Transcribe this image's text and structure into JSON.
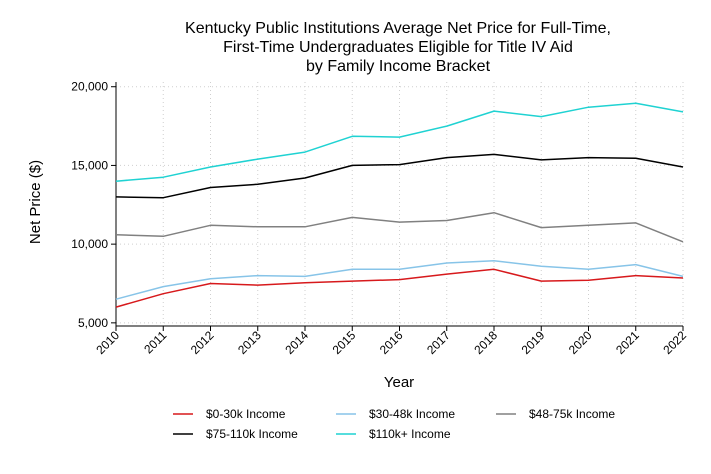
{
  "chart_data": {
    "type": "line",
    "title_lines": [
      "Kentucky Public Institutions Average Net Price for Full-Time,",
      "First-Time Undergraduates Eligible for Title IV Aid",
      "by Family Income Bracket"
    ],
    "xlabel": "Year",
    "ylabel": "Net Price ($)",
    "x": [
      2010,
      2011,
      2012,
      2013,
      2014,
      2015,
      2016,
      2017,
      2018,
      2019,
      2020,
      2021,
      2022
    ],
    "x_tick_labels": [
      "2010",
      "2011",
      "2012",
      "2013",
      "2014",
      "2015",
      "2016",
      "2017",
      "2018",
      "2019",
      "2020",
      "2021",
      "2022"
    ],
    "ylim": [
      4800,
      20300
    ],
    "y_ticks": [
      5000,
      10000,
      15000,
      20000
    ],
    "y_tick_labels": [
      "5,000",
      "10,000",
      "15,000",
      "20,000"
    ],
    "grid": true,
    "legend_position": "bottom",
    "series": [
      {
        "name": "$0-30k Income",
        "color": "#d7191c",
        "values": [
          6000,
          6850,
          7500,
          7400,
          7550,
          7650,
          7750,
          8100,
          8400,
          7650,
          7700,
          8000,
          7850
        ]
      },
      {
        "name": "$30-48k Income",
        "color": "#87c4e8",
        "values": [
          6500,
          7300,
          7800,
          8000,
          7950,
          8400,
          8400,
          8800,
          8950,
          8600,
          8400,
          8700,
          7950
        ]
      },
      {
        "name": "$48-75k Income",
        "color": "#808080",
        "values": [
          10600,
          10500,
          11200,
          11100,
          11100,
          11700,
          11400,
          11500,
          12000,
          11050,
          11200,
          11350,
          10150
        ]
      },
      {
        "name": "$75-110k Income",
        "color": "#000000",
        "values": [
          13000,
          12950,
          13600,
          13800,
          14200,
          15000,
          15050,
          15500,
          15700,
          15350,
          15500,
          15450,
          14900
        ]
      },
      {
        "name": "$110k+ Income",
        "color": "#1fd2d2",
        "values": [
          14000,
          14250,
          14900,
          15400,
          15850,
          16850,
          16800,
          17500,
          18450,
          18100,
          18700,
          18950,
          18400
        ]
      }
    ]
  }
}
